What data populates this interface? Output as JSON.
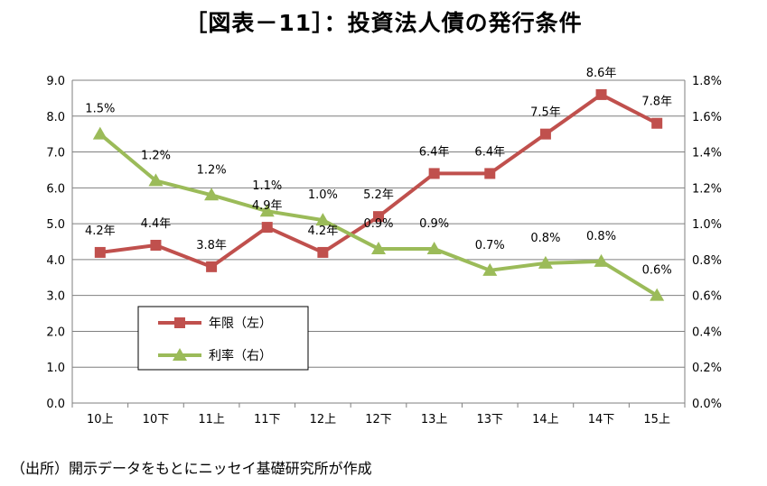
{
  "title": "［図表－11］：投資法人債の発行条件",
  "source": "（出所）開示データをもとにニッセイ基礎研究所が作成",
  "colors": {
    "tenor": "#c0504d",
    "rate": "#9bbb59",
    "grid": "#7f7f7f"
  },
  "chart_data": {
    "type": "line",
    "categories": [
      "10上",
      "10下",
      "11上",
      "11下",
      "12上",
      "12下",
      "13上",
      "13下",
      "14上",
      "14下",
      "15上"
    ],
    "y_left": {
      "ylim": [
        0,
        9
      ],
      "ticks": [
        "0.0",
        "1.0",
        "2.0",
        "3.0",
        "4.0",
        "5.0",
        "6.0",
        "7.0",
        "8.0",
        "9.0"
      ]
    },
    "y_right": {
      "ylim": [
        0,
        1.8
      ],
      "ticks": [
        "0.0%",
        "0.2%",
        "0.4%",
        "0.6%",
        "0.8%",
        "1.0%",
        "1.2%",
        "1.4%",
        "1.6%",
        "1.8%"
      ]
    },
    "grid": true,
    "legend_position": "inside-lower-left",
    "series": [
      {
        "name": "年限（左）",
        "axis": "left",
        "marker": "square",
        "values": [
          4.2,
          4.4,
          3.8,
          4.9,
          4.2,
          5.2,
          6.4,
          6.4,
          7.5,
          8.6,
          7.8
        ],
        "labels": [
          "4.2年",
          "4.4年",
          "3.8年",
          "4.9年",
          "4.2年",
          "5.2年",
          "6.4年",
          "6.4年",
          "7.5年",
          "8.6年",
          "7.8年"
        ]
      },
      {
        "name": "利率（右）",
        "axis": "right",
        "marker": "triangle",
        "values": [
          1.5,
          1.24,
          1.16,
          1.07,
          1.02,
          0.86,
          0.86,
          0.74,
          0.78,
          0.79,
          0.6
        ],
        "labels": [
          "1.5%",
          "1.2%",
          "1.2%",
          "1.1%",
          "1.0%",
          "0.9%",
          "0.9%",
          "0.7%",
          "0.8%",
          "0.8%",
          "0.6%"
        ]
      }
    ]
  }
}
